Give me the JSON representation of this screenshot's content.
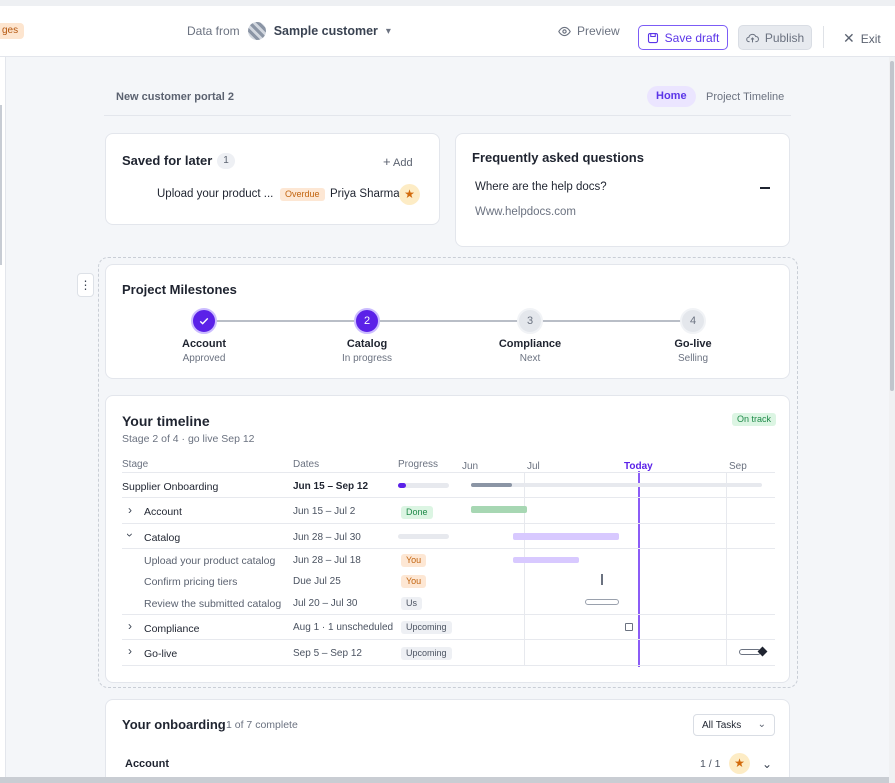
{
  "topbar": {
    "tag": "ges",
    "data_from_label": "Data from",
    "data_from_value": "Sample customer",
    "preview": "Preview",
    "save_draft": "Save draft",
    "publish": "Publish",
    "exit": "Exit"
  },
  "portal": {
    "title": "New customer portal 2",
    "nav": [
      "Home",
      "Project Timeline"
    ]
  },
  "saved": {
    "title": "Saved for later",
    "count": "1",
    "add": "Add",
    "task": "Upload your product ...",
    "status": "Overdue",
    "assignee": "Priya Sharma"
  },
  "faq": {
    "title": "Frequently asked questions",
    "question": "Where are the help docs?",
    "answer": "Www.helpdocs.com"
  },
  "milestones": {
    "title": "Project Milestones",
    "items": [
      {
        "num": "✓",
        "name": "Account",
        "status": "Approved"
      },
      {
        "num": "2",
        "name": "Catalog",
        "status": "In progress"
      },
      {
        "num": "3",
        "name": "Compliance",
        "status": "Next"
      },
      {
        "num": "4",
        "name": "Go-live",
        "status": "Selling"
      }
    ]
  },
  "timeline": {
    "title": "Your timeline",
    "subtitle": "Stage 2 of 4 · go live Sep 12",
    "badge": "On track",
    "columns": {
      "stage": "Stage",
      "dates": "Dates",
      "progress": "Progress"
    },
    "months": [
      "Jun",
      "Jul",
      "Today",
      "Sep"
    ],
    "rows": [
      {
        "label": "Supplier Onboarding",
        "dates": "Jun 15 – Sep 12",
        "tag": "",
        "progress": 0.15
      },
      {
        "label": "Account",
        "dates": "Jun 15 – Jul 2",
        "tag": "Done"
      },
      {
        "label": "Catalog",
        "dates": "Jun 28 – Jul 30",
        "tag": ""
      },
      {
        "label": "Upload your product catalog",
        "dates": "Jun 28 – Jul 18",
        "tag": "You"
      },
      {
        "label": "Confirm pricing tiers",
        "dates": "Due Jul 25",
        "tag": "You"
      },
      {
        "label": "Review the submitted catalog",
        "dates": "Jul 20 – Jul 30",
        "tag": "Us"
      },
      {
        "label": "Compliance",
        "dates": "Aug 1 · 1 unscheduled",
        "tag": "Upcoming"
      },
      {
        "label": "Go-live",
        "dates": "Sep 5 – Sep 12",
        "tag": "Upcoming"
      }
    ]
  },
  "onboarding": {
    "title": "Your onboarding",
    "complete": "1 of 7 complete",
    "filter": "All Tasks",
    "section": "Account",
    "fraction": "1 / 1"
  },
  "colors": {
    "accent": "#5b21e8",
    "done": "#1f8a49",
    "warning": "#c2640f"
  }
}
